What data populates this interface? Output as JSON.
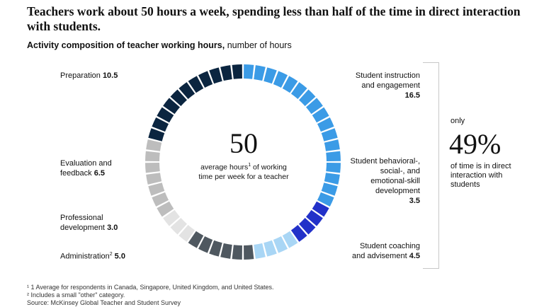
{
  "headline": "Teachers work about 50 hours a week, spending less than half of the time in direct interaction with students.",
  "subtitle": {
    "bold": "Activity composition of teacher working hours,",
    "rest": " number of hours"
  },
  "center": {
    "number": "50",
    "text_a": "average hours",
    "sup": "1",
    "text_b": " of working time per week for a teacher"
  },
  "callout": {
    "only": "only",
    "percent": "49%",
    "text": "of time is in direct interaction with students"
  },
  "labels": {
    "instruction_name": "Student instruction and engagement",
    "instruction_value": "16.5",
    "behavioral_name": "Student behavioral-, social-, and emotional-skill development",
    "behavioral_value": "3.5",
    "coaching_name": "Student coaching and advisement",
    "coaching_value": "4.5",
    "admin_name": "Administration",
    "admin_sup": "2",
    "admin_value": "5.0",
    "pd_name": "Professional development",
    "pd_value": "3.0",
    "eval_name": "Evaluation and feedback",
    "eval_value": "6.5",
    "prep_name": "Preparation",
    "prep_value": "10.5"
  },
  "footnotes": {
    "n1": "¹ 1 Average for respondents in Canada, Singapore, United Kingdom, and United States.",
    "n2": "² Includes a small \"other\" category.",
    "source": "Source: McKinsey Global Teacher and Student Survey"
  },
  "chart_data": {
    "type": "pie",
    "variant": "segmented donut",
    "title": "Activity composition of teacher working hours, number of hours",
    "total": 50,
    "direct_interaction_percent": 49,
    "categories": [
      "Student instruction and engagement",
      "Student behavioral-, social-, and emotional-skill development",
      "Student coaching and advisement",
      "Administration",
      "Professional development",
      "Evaluation and feedback",
      "Preparation"
    ],
    "values": [
      16.5,
      3.5,
      4.5,
      5.0,
      3.0,
      6.5,
      10.5
    ],
    "colors": [
      "#3b9be6",
      "#2231c9",
      "#a9d6f5",
      "#4f5860",
      "#e3e3e3",
      "#bdbdbd",
      "#0b2540"
    ]
  }
}
